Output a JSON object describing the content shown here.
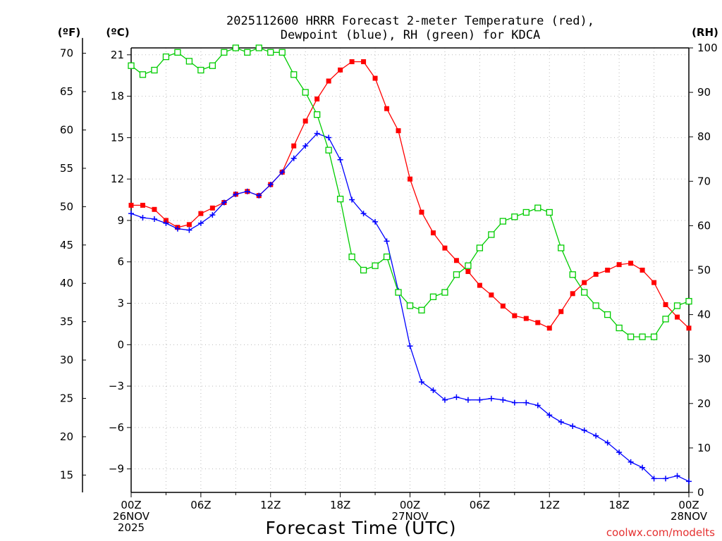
{
  "title_line1": "2025112600 HRRR Forecast 2-meter Temperature (red),",
  "title_line2": "Dewpoint (blue), RH (green) for KDCA",
  "credit": "coolwx.com/modelts",
  "colors": {
    "temperature": "#ff0000",
    "dewpoint": "#0000ff",
    "rh": "#00cc00"
  },
  "chart_data": {
    "type": "line",
    "xlabel": "Forecast Time (UTC)",
    "x_hours_range": [
      0,
      48
    ],
    "x_ticks": [
      {
        "hour": 0,
        "lines": [
          "00Z",
          "26NOV",
          "2025"
        ]
      },
      {
        "hour": 6,
        "lines": [
          "06Z"
        ]
      },
      {
        "hour": 12,
        "lines": [
          "12Z"
        ]
      },
      {
        "hour": 18,
        "lines": [
          "18Z"
        ]
      },
      {
        "hour": 24,
        "lines": [
          "00Z",
          "27NOV"
        ]
      },
      {
        "hour": 30,
        "lines": [
          "06Z"
        ]
      },
      {
        "hour": 36,
        "lines": [
          "12Z"
        ]
      },
      {
        "hour": 42,
        "lines": [
          "18Z"
        ]
      },
      {
        "hour": 48,
        "lines": [
          "00Z",
          "28NOV"
        ]
      }
    ],
    "y_left_celsius": {
      "unit": "(ºC)",
      "range": [
        -10.7,
        21.5
      ],
      "ticks": [
        21,
        18,
        15,
        12,
        9,
        6,
        3,
        0,
        -3,
        -6,
        -9
      ]
    },
    "y_left_fahrenheit": {
      "unit": "(ºF)",
      "ticks": [
        70,
        65,
        60,
        55,
        50,
        45,
        40,
        35,
        30,
        25,
        20,
        15
      ]
    },
    "y_right_rh": {
      "unit": "(RH)",
      "range": [
        0,
        100
      ],
      "ticks": [
        100,
        90,
        80,
        70,
        60,
        50,
        40,
        30,
        20,
        10,
        0
      ]
    },
    "grid": true,
    "series": [
      {
        "name": "Temperature (red)",
        "axis": "celsius",
        "marker": "filled-square",
        "hours": [
          0,
          1,
          2,
          3,
          4,
          5,
          6,
          7,
          8,
          9,
          10,
          11,
          12,
          13,
          14,
          15,
          16,
          17,
          18,
          19,
          20,
          21,
          22,
          23,
          24,
          25,
          26,
          27,
          28,
          29,
          30,
          31,
          32,
          33,
          34,
          35,
          36,
          37,
          38,
          39,
          40,
          41,
          42,
          43,
          44,
          45,
          46,
          47,
          48
        ],
        "values": [
          10.1,
          10.1,
          9.8,
          9.0,
          8.5,
          8.7,
          9.5,
          9.9,
          10.3,
          10.9,
          11.1,
          10.8,
          11.6,
          12.5,
          14.4,
          16.2,
          17.8,
          19.1,
          19.9,
          20.5,
          20.5,
          19.3,
          17.1,
          15.5,
          12.0,
          9.6,
          8.1,
          7.0,
          6.1,
          5.3,
          4.3,
          3.6,
          2.8,
          2.1,
          1.9,
          1.6,
          1.2,
          2.4,
          3.7,
          4.5,
          5.1,
          5.4,
          5.8,
          5.9,
          5.4,
          4.5,
          2.9,
          2.0,
          1.2
        ]
      },
      {
        "name": "Dewpoint (blue)",
        "axis": "celsius",
        "marker": "plus",
        "hours": [
          0,
          1,
          2,
          3,
          4,
          5,
          6,
          7,
          8,
          9,
          10,
          11,
          12,
          13,
          14,
          15,
          16,
          17,
          18,
          19,
          20,
          21,
          22,
          23,
          24,
          25,
          26,
          27,
          28,
          29,
          30,
          31,
          32,
          33,
          34,
          35,
          36,
          37,
          38,
          39,
          40,
          41,
          42,
          43,
          44,
          45,
          46,
          47,
          48
        ],
        "values": [
          9.5,
          9.2,
          9.1,
          8.8,
          8.4,
          8.3,
          8.8,
          9.4,
          10.3,
          10.9,
          11.1,
          10.8,
          11.6,
          12.5,
          13.5,
          14.4,
          15.3,
          15.0,
          13.4,
          10.5,
          9.5,
          8.9,
          7.5,
          3.9,
          -0.1,
          -2.7,
          -3.3,
          -4.0,
          -3.8,
          -4.0,
          -4.0,
          -3.9,
          -4.0,
          -4.2,
          -4.2,
          -4.4,
          -5.1,
          -5.6,
          -5.9,
          -6.2,
          -6.6,
          -7.1,
          -7.8,
          -8.5,
          -8.9,
          -9.7,
          -9.7,
          -9.5,
          -9.9
        ]
      },
      {
        "name": "RH (green)",
        "axis": "rh",
        "marker": "open-square",
        "hours": [
          0,
          1,
          2,
          3,
          4,
          5,
          6,
          7,
          8,
          9,
          10,
          11,
          12,
          13,
          14,
          15,
          16,
          17,
          18,
          19,
          20,
          21,
          22,
          23,
          24,
          25,
          26,
          27,
          28,
          29,
          30,
          31,
          32,
          33,
          34,
          35,
          36,
          37,
          38,
          39,
          40,
          41,
          42,
          43,
          44,
          45,
          46,
          47,
          48
        ],
        "values": [
          96,
          94,
          95,
          98,
          99,
          97,
          95,
          96,
          99,
          100,
          99,
          100,
          99,
          99,
          94,
          90,
          85,
          77,
          66,
          53,
          50,
          51,
          53,
          45,
          42,
          41,
          44,
          45,
          49,
          51,
          55,
          58,
          61,
          62,
          63,
          64,
          63,
          55,
          49,
          45,
          42,
          40,
          37,
          35,
          35,
          35,
          39,
          42,
          43
        ]
      }
    ]
  }
}
